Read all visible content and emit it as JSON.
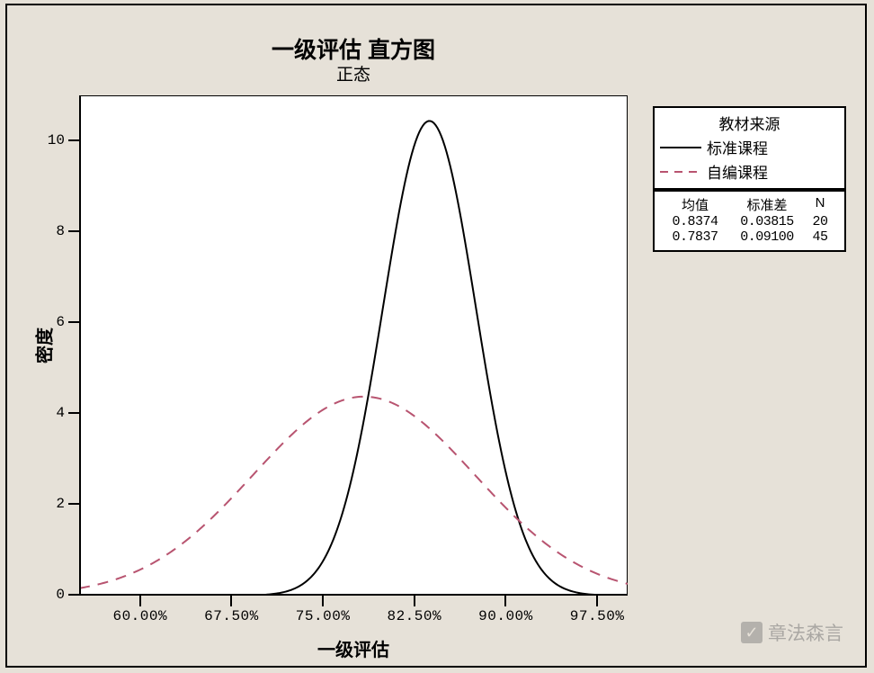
{
  "chart": {
    "type": "line",
    "title": "一级评估 直方图",
    "subtitle": "正态",
    "title_fontsize": 25,
    "subtitle_fontsize": 19,
    "xlabel": "一级评估",
    "ylabel": "密度",
    "label_fontsize": 20,
    "background_color": "#e6e1d8",
    "plot_background_color": "#ffffff",
    "axis_color": "#000000",
    "xlim": [
      0.55,
      1.0
    ],
    "ylim": [
      0,
      11
    ],
    "xticks": [
      0.6,
      0.675,
      0.75,
      0.825,
      0.9,
      0.975
    ],
    "xtick_labels": [
      "60.00%",
      "67.50%",
      "75.00%",
      "82.50%",
      "90.00%",
      "97.50%"
    ],
    "yticks": [
      0,
      2,
      4,
      6,
      8,
      10
    ],
    "ytick_labels": [
      "0",
      "2",
      "4",
      "6",
      "8",
      "10"
    ],
    "tick_fontsize": 16,
    "line_width": 2,
    "series": [
      {
        "name": "标准课程",
        "color": "#000000",
        "dash": "solid",
        "distribution": "normal",
        "mean": 0.8374,
        "stddev": 0.03815,
        "n": 20
      },
      {
        "name": "自编课程",
        "color": "#b85470",
        "dash": "dashed",
        "distribution": "normal",
        "mean": 0.7837,
        "stddev": 0.091,
        "n": 45
      }
    ]
  },
  "legend": {
    "title": "教材来源",
    "position": "right-top",
    "border_color": "#000000",
    "background": "#ffffff",
    "fontsize": 17,
    "items": [
      {
        "label": "标准课程",
        "color": "#000000",
        "dash": "solid"
      },
      {
        "label": "自编课程",
        "color": "#b85470",
        "dash": "dashed"
      }
    ]
  },
  "stats": {
    "headers": [
      "均值",
      "标准差",
      "N"
    ],
    "fontsize": 15,
    "border_color": "#000000",
    "background": "#ffffff",
    "rows": [
      {
        "mean": "0.8374",
        "stddev": "0.03815",
        "n": "20"
      },
      {
        "mean": "0.7837",
        "stddev": "0.09100",
        "n": "45"
      }
    ]
  },
  "watermark": {
    "icon": "✓",
    "text": "章法森言",
    "color": "rgba(120,120,120,0.55)"
  }
}
